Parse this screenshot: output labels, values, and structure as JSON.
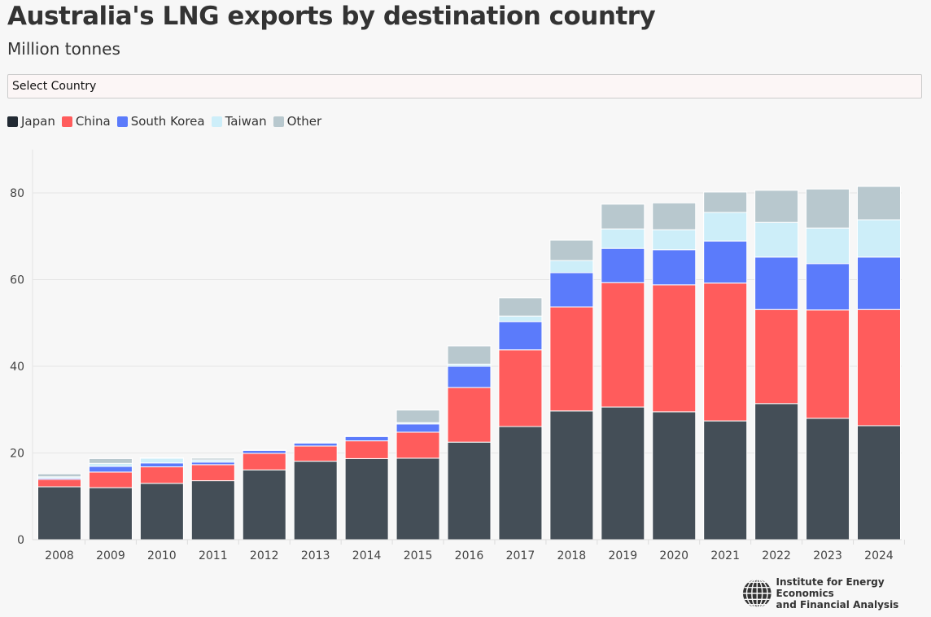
{
  "title": "Australia's LNG exports by destination country",
  "subtitle": "Million tonnes",
  "select": {
    "value": "Select Country"
  },
  "logo": {
    "line1": "Institute for Energy Economics",
    "line2": "and Financial Analysis"
  },
  "chart_data": {
    "type": "bar",
    "stacked": true,
    "title": "Australia's LNG exports by destination country",
    "ylabel": "Million tonnes",
    "ylim": [
      0,
      90
    ],
    "yticks": [
      0,
      20,
      40,
      60,
      80
    ],
    "grid": true,
    "legend": "top-left",
    "categories": [
      "2008",
      "2009",
      "2010",
      "2011",
      "2012",
      "2013",
      "2014",
      "2015",
      "2016",
      "2017",
      "2018",
      "2019",
      "2020",
      "2021",
      "2022",
      "2023",
      "2024"
    ],
    "series": [
      {
        "name": "Japan",
        "color": "#444e57",
        "values": [
          12.2,
          12.0,
          13.0,
          13.6,
          16.1,
          18.1,
          18.7,
          18.8,
          22.5,
          26.1,
          29.7,
          30.6,
          29.5,
          27.4,
          31.4,
          28.0,
          26.3
        ]
      },
      {
        "name": "China",
        "color": "#ff5c5c",
        "values": [
          1.7,
          3.6,
          3.8,
          3.7,
          3.8,
          3.5,
          4.1,
          6.0,
          12.6,
          17.7,
          24.0,
          28.7,
          29.3,
          31.8,
          21.7,
          25.0,
          26.8
        ]
      },
      {
        "name": "South Korea",
        "color": "#5b7bfb",
        "values": [
          0.3,
          1.3,
          0.9,
          0.6,
          0.7,
          0.7,
          1.0,
          1.9,
          4.9,
          6.5,
          7.9,
          7.9,
          8.1,
          9.7,
          12.1,
          10.7,
          12.1
        ]
      },
      {
        "name": "Taiwan",
        "color": "#cdeef9",
        "values": [
          0.3,
          0.7,
          1.1,
          0.5,
          0.0,
          0.0,
          0.0,
          0.3,
          0.5,
          1.3,
          2.8,
          4.5,
          4.6,
          6.6,
          8.0,
          8.2,
          8.6
        ]
      },
      {
        "name": "Other",
        "color": "#b8c8ce",
        "values": [
          0.7,
          1.1,
          0.1,
          0.4,
          0.1,
          0.2,
          0.2,
          2.9,
          4.2,
          4.2,
          4.7,
          5.7,
          6.2,
          4.7,
          7.4,
          9.0,
          7.7
        ]
      }
    ]
  }
}
